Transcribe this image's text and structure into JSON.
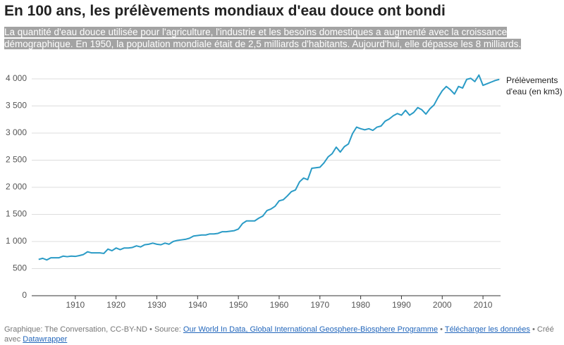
{
  "chart_data": {
    "type": "line",
    "title": "En 100 ans, les prélèvements mondiaux d'eau douce ont bondi",
    "subtitle": "La quantité d'eau douce utilisée pour l'agriculture, l'industrie et les besoins domestiques a augmenté avec la croissance démographique. En 1950, la population mondiale était de 2,5 milliards d'habitants. Aujourd'hui, elle dépasse les 8 milliards.",
    "x": [
      1901,
      1902,
      1903,
      1904,
      1905,
      1906,
      1907,
      1908,
      1909,
      1910,
      1911,
      1912,
      1913,
      1914,
      1915,
      1916,
      1917,
      1918,
      1919,
      1920,
      1921,
      1922,
      1923,
      1924,
      1925,
      1926,
      1927,
      1928,
      1929,
      1930,
      1931,
      1932,
      1933,
      1934,
      1935,
      1936,
      1937,
      1938,
      1939,
      1940,
      1941,
      1942,
      1943,
      1944,
      1945,
      1946,
      1947,
      1948,
      1949,
      1950,
      1951,
      1952,
      1953,
      1954,
      1955,
      1956,
      1957,
      1958,
      1959,
      1960,
      1961,
      1962,
      1963,
      1964,
      1965,
      1966,
      1967,
      1968,
      1969,
      1970,
      1971,
      1972,
      1973,
      1974,
      1975,
      1976,
      1977,
      1978,
      1979,
      1980,
      1981,
      1982,
      1983,
      1984,
      1985,
      1986,
      1987,
      1988,
      1989,
      1990,
      1991,
      1992,
      1993,
      1994,
      1995,
      1996,
      1997,
      1998,
      1999,
      2000,
      2001,
      2002,
      2003,
      2004,
      2005,
      2006,
      2007,
      2008,
      2009,
      2010,
      2011,
      2012,
      2013,
      2014
    ],
    "series": [
      {
        "name": "Prélèvements d'eau (en km3)",
        "color": "#2a9bc6",
        "values": [
          670,
          690,
          660,
          700,
          700,
          700,
          730,
          720,
          730,
          725,
          740,
          760,
          810,
          790,
          790,
          790,
          780,
          860,
          830,
          880,
          850,
          880,
          880,
          890,
          920,
          900,
          940,
          950,
          970,
          950,
          940,
          970,
          950,
          1000,
          1020,
          1030,
          1040,
          1060,
          1100,
          1110,
          1120,
          1120,
          1140,
          1140,
          1150,
          1180,
          1180,
          1190,
          1200,
          1230,
          1330,
          1380,
          1380,
          1380,
          1430,
          1470,
          1570,
          1600,
          1650,
          1750,
          1770,
          1840,
          1920,
          1950,
          2100,
          2170,
          2140,
          2350,
          2360,
          2370,
          2450,
          2560,
          2620,
          2740,
          2650,
          2750,
          2800,
          2990,
          3110,
          3080,
          3060,
          3080,
          3050,
          3110,
          3130,
          3220,
          3260,
          3320,
          3360,
          3330,
          3420,
          3330,
          3380,
          3470,
          3430,
          3350,
          3450,
          3520,
          3660,
          3780,
          3860,
          3800,
          3720,
          3860,
          3830,
          3990,
          4010,
          3950,
          4070,
          3880,
          3910,
          3940,
          3970,
          3990
        ]
      }
    ],
    "xlim": [
      1900,
      2015
    ],
    "xticks": [
      1910,
      1920,
      1930,
      1940,
      1950,
      1960,
      1970,
      1980,
      1990,
      2000,
      2010
    ],
    "ylim": [
      0,
      4000
    ],
    "yticks": [
      0,
      {
        "value": 500,
        "label": "500"
      },
      {
        "value": 1000,
        "label": "1 000"
      },
      {
        "value": 1500,
        "label": "1 500"
      },
      {
        "value": 2000,
        "label": "2 000"
      },
      {
        "value": 2500,
        "label": "2 500"
      },
      {
        "value": 3000,
        "label": "3 000"
      },
      {
        "value": 3500,
        "label": "3 500"
      },
      {
        "value": 4000,
        "label": "4 000"
      }
    ],
    "grid": true
  },
  "footer": {
    "credit": "Graphique: The Conversation, CC-BY-ND • Source: ",
    "source_link": "Our World In Data, Global International Geosphere-Biosphere Programme",
    "sep": " • ",
    "download": "Télécharger les données",
    "made_with": " • Créé avec ",
    "tool": "Datawrapper"
  }
}
